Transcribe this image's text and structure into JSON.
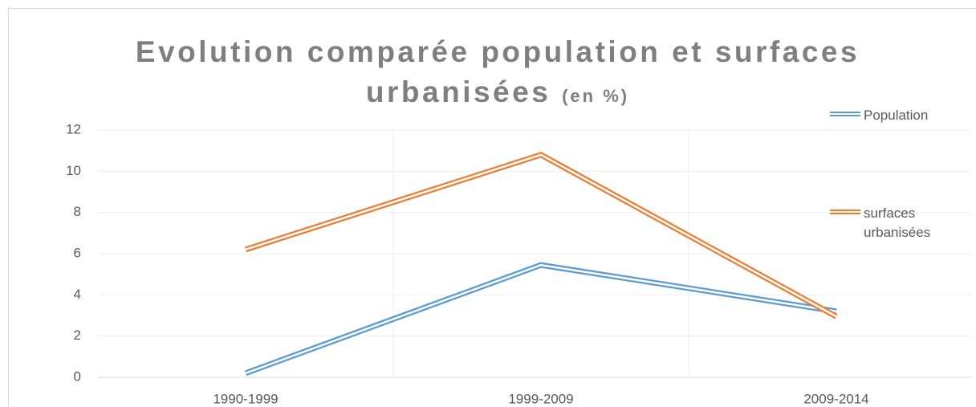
{
  "chart_data": {
    "type": "line",
    "title": "Evolution comparée population et surfaces urbanisées",
    "subtitle": "(en %)",
    "categories": [
      "1990-1999",
      "1999-2009",
      "2009-2014"
    ],
    "series": [
      {
        "name": "Population",
        "color": "#5b9bd5",
        "values": [
          0.2,
          5.45,
          3.2
        ]
      },
      {
        "name": "surfaces urbanisées",
        "color": "#ed7d31",
        "values": [
          6.2,
          10.8,
          2.95
        ]
      }
    ],
    "ylim": [
      0,
      12
    ],
    "yticks": [
      0,
      2,
      4,
      6,
      8,
      10,
      12
    ],
    "grid": true,
    "legend": "right"
  }
}
